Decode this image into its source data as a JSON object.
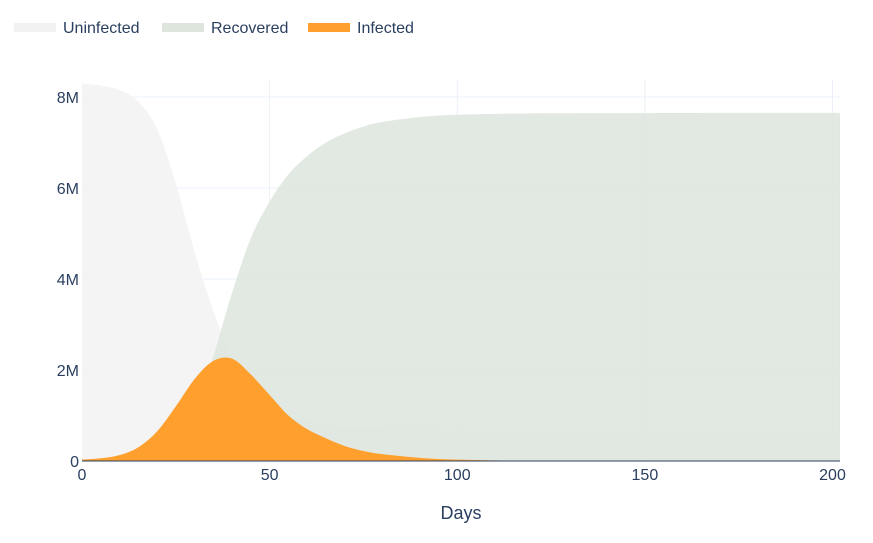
{
  "chart_data": {
    "type": "area",
    "title": "",
    "xlabel": "Days",
    "ylabel": "",
    "xlim": [
      0,
      202
    ],
    "ylim": [
      0,
      8300000
    ],
    "x_ticks": [
      0,
      50,
      100,
      150,
      200
    ],
    "x_tick_labels": [
      "0",
      "50",
      "100",
      "150",
      "200"
    ],
    "y_ticks": [
      0,
      2000000,
      4000000,
      6000000,
      8000000
    ],
    "y_tick_labels": [
      "0",
      "2M",
      "4M",
      "6M",
      "8M"
    ],
    "grid": true,
    "legend_position": "top-left",
    "x": [
      0,
      5,
      10,
      15,
      20,
      25,
      30,
      35,
      40,
      45,
      50,
      55,
      60,
      65,
      70,
      75,
      80,
      90,
      100,
      110,
      120,
      140,
      160,
      180,
      202
    ],
    "series": [
      {
        "name": "Uninfected",
        "color": "#f2f2f2",
        "values": [
          8300000,
          8250000,
          8150000,
          7900000,
          7300000,
          6100000,
          4600000,
          3300000,
          2300000,
          1650000,
          1250000,
          1000000,
          880000,
          800000,
          750000,
          720000,
          700000,
          680000,
          670000,
          665000,
          660000,
          655000,
          652000,
          650000,
          650000
        ]
      },
      {
        "name": "Recovered",
        "color": "#dde5dd",
        "values": [
          0,
          10000,
          30000,
          80000,
          200000,
          500000,
          1100000,
          2300000,
          3700000,
          4900000,
          5700000,
          6300000,
          6700000,
          7000000,
          7200000,
          7350000,
          7450000,
          7560000,
          7610000,
          7630000,
          7640000,
          7645000,
          7648000,
          7650000,
          7650000
        ]
      },
      {
        "name": "Infected",
        "color": "#ffa02e",
        "values": [
          30000,
          60000,
          130000,
          300000,
          650000,
          1200000,
          1800000,
          2200000,
          2250000,
          1900000,
          1450000,
          1000000,
          700000,
          500000,
          330000,
          220000,
          150000,
          70000,
          30000,
          15000,
          8000,
          3000,
          1000,
          500,
          200
        ]
      }
    ]
  }
}
